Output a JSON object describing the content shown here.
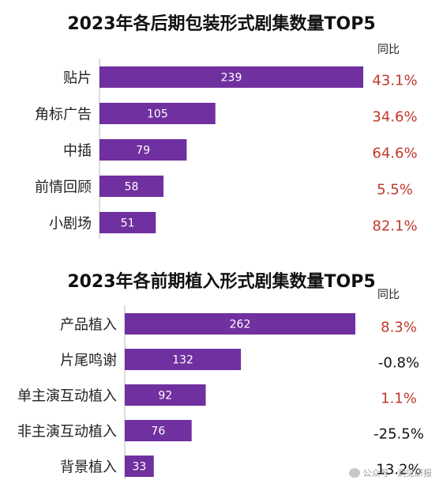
{
  "chart_data": [
    {
      "type": "bar",
      "orientation": "horizontal",
      "title": "2023年各后期包装形式剧集数量TOP5",
      "categories": [
        "贴片",
        "角标广告",
        "中插",
        "前情回顾",
        "小剧场"
      ],
      "values": [
        239,
        105,
        79,
        58,
        51
      ],
      "yoy_header": "同比",
      "yoy": [
        "43.1%",
        "34.6%",
        "64.6%",
        "5.5%",
        "82.1%"
      ],
      "yoy_colors": [
        "#c0392b",
        "#c0392b",
        "#c0392b",
        "#c0392b",
        "#c0392b"
      ]
    },
    {
      "type": "bar",
      "orientation": "horizontal",
      "title": "2023年各前期植入形式剧集数量TOP5",
      "categories": [
        "产品植入",
        "片尾鸣谢",
        "单主演互动植入",
        "非主演互动植入",
        "背景植入"
      ],
      "values": [
        262,
        132,
        92,
        76,
        33
      ],
      "yoy_header": "同比",
      "yoy": [
        "8.3%",
        "-0.8%",
        "1.1%",
        "-25.5%",
        "13.2%"
      ],
      "yoy_colors": [
        "#c0392b",
        "#111111",
        "#c0392b",
        "#111111",
        "#111111"
      ]
    }
  ],
  "colors": {
    "bar": "#7030a0",
    "axis": "#bbbbbb",
    "label": "#222222"
  },
  "watermark": "公众号 · 洞见研报"
}
